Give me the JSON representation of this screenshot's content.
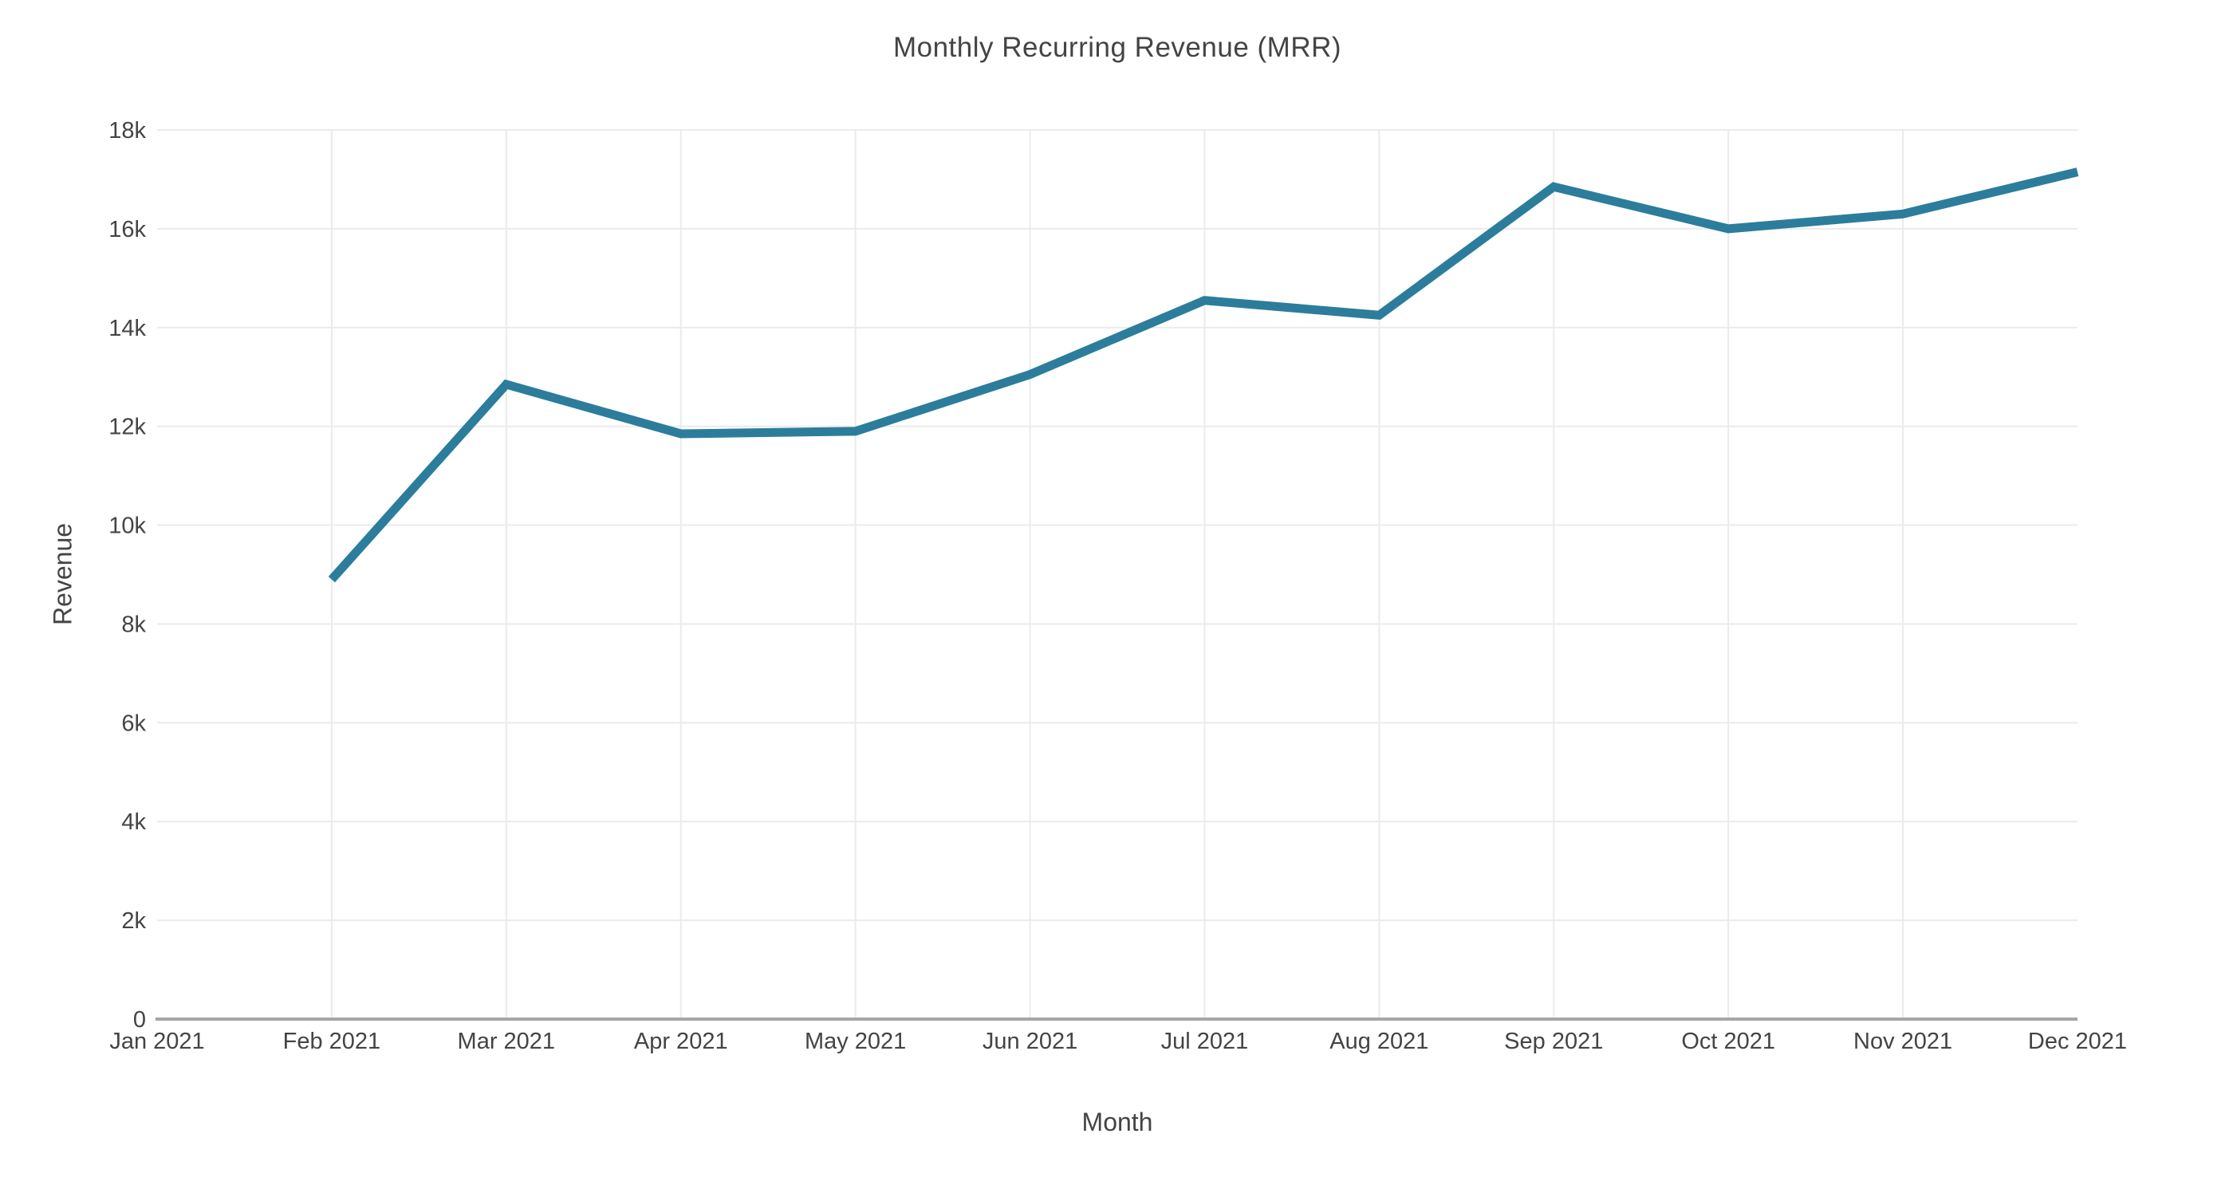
{
  "chart_data": {
    "type": "line",
    "title": "Monthly Recurring Revenue (MRR)",
    "xlabel": "Month",
    "ylabel": "Revenue",
    "categories": [
      "Jan 2021",
      "Feb 2021",
      "Mar 2021",
      "Apr 2021",
      "May 2021",
      "Jun 2021",
      "Jul 2021",
      "Aug 2021",
      "Sep 2021",
      "Oct 2021",
      "Nov 2021",
      "Dec 2021"
    ],
    "series": [
      {
        "name": "MRR",
        "color": "#2c7d9b",
        "values": [
          null,
          8900,
          12850,
          11850,
          11900,
          13050,
          14550,
          14250,
          16850,
          16000,
          16300,
          17150
        ]
      }
    ],
    "ylim": [
      0,
      18000
    ],
    "yticks": [
      0,
      2000,
      4000,
      6000,
      8000,
      10000,
      12000,
      14000,
      16000,
      18000
    ],
    "ytick_labels": [
      "0",
      "2k",
      "4k",
      "6k",
      "8k",
      "10k",
      "12k",
      "14k",
      "16k",
      "18k"
    ],
    "grid": true,
    "legend": "none"
  },
  "colors": {
    "line": "#2c7d9b",
    "grid": "#ebebeb",
    "axis": "#a6a6a6",
    "text": "#444444",
    "background": "#ffffff"
  }
}
